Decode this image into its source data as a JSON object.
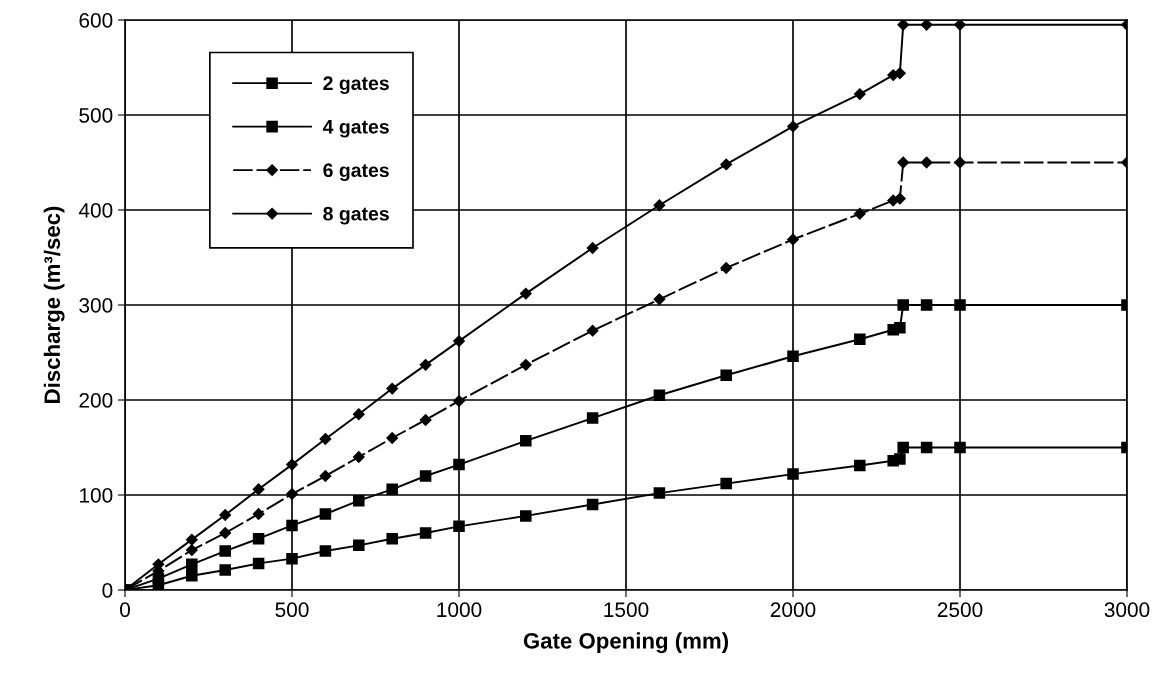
{
  "chart_data": {
    "type": "line",
    "xlabel": "Gate Opening (mm)",
    "ylabel": "Discharge (m³/sec)",
    "x": [
      0,
      100,
      200,
      300,
      400,
      500,
      600,
      700,
      800,
      900,
      1000,
      1200,
      1400,
      1600,
      1800,
      2000,
      2200,
      2300,
      2320,
      2330,
      2400,
      2500,
      3000
    ],
    "series": [
      {
        "name": "2 gates",
        "color": "#000000",
        "marker": "square",
        "line_style": "solid",
        "values": [
          0,
          5,
          15,
          21,
          28,
          33,
          41,
          47,
          54,
          60,
          67,
          78,
          90,
          102,
          112,
          122,
          131,
          136,
          138,
          150,
          150,
          150,
          150
        ]
      },
      {
        "name": "4 gates",
        "color": "#000000",
        "marker": "square",
        "line_style": "solid",
        "values": [
          0,
          12,
          27,
          41,
          54,
          68,
          80,
          94,
          106,
          120,
          132,
          157,
          181,
          205,
          226,
          246,
          264,
          274,
          276,
          300,
          300,
          300,
          300
        ]
      },
      {
        "name": "6 gates",
        "color": "#000000",
        "marker": "diamond",
        "line_style": "dashed",
        "values": [
          0,
          20,
          42,
          60,
          80,
          101,
          120,
          140,
          160,
          179,
          199,
          237,
          273,
          306,
          339,
          369,
          396,
          410,
          412,
          450,
          450,
          450,
          450
        ]
      },
      {
        "name": "8 gates",
        "color": "#000000",
        "marker": "diamond",
        "line_style": "solid",
        "values": [
          0,
          27,
          53,
          79,
          106,
          132,
          159,
          185,
          212,
          237,
          262,
          312,
          360,
          405,
          448,
          488,
          522,
          542,
          544,
          595,
          595,
          595,
          595
        ]
      }
    ],
    "xlim": [
      0,
      3000
    ],
    "xticks": [
      0,
      500,
      1000,
      1500,
      2000,
      2500,
      3000
    ],
    "ylim": [
      0,
      600
    ],
    "yticks": [
      0,
      100,
      200,
      300,
      400,
      500,
      600
    ],
    "grid": true,
    "legend": "top left"
  }
}
